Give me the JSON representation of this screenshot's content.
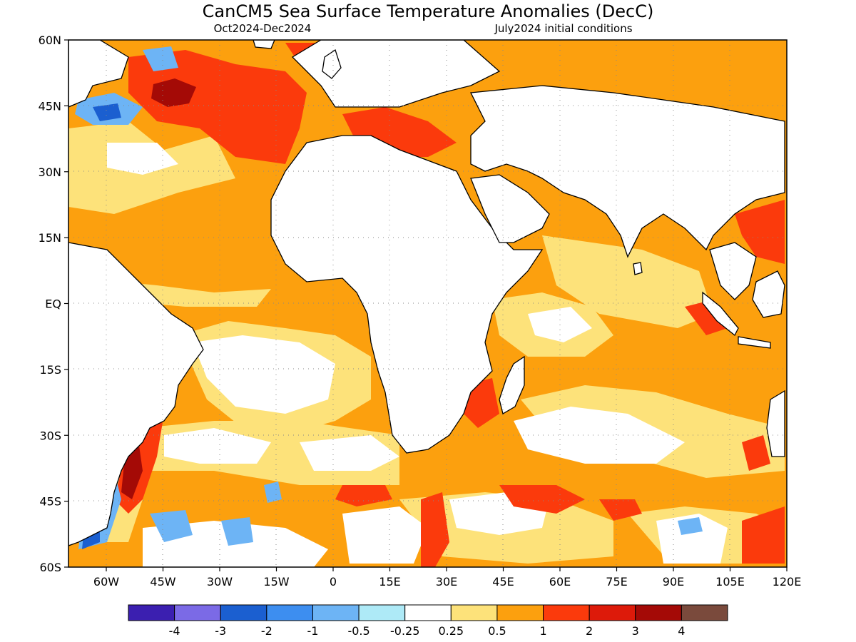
{
  "title": "CanCM5 Sea Surface Temperature Anomalies (DecC)",
  "subtitle_left": "Oct2024-Dec2024",
  "subtitle_right": "July2024 initial conditions",
  "map": {
    "lon_range": [
      -70,
      120
    ],
    "lat_range": [
      -60,
      60
    ],
    "lat_ticks": [
      {
        "value": 60,
        "label": "60N"
      },
      {
        "value": 45,
        "label": "45N"
      },
      {
        "value": 30,
        "label": "30N"
      },
      {
        "value": 15,
        "label": "15N"
      },
      {
        "value": 0,
        "label": "EQ"
      },
      {
        "value": -15,
        "label": "15S"
      },
      {
        "value": -30,
        "label": "30S"
      },
      {
        "value": -45,
        "label": "45S"
      },
      {
        "value": -60,
        "label": "60S"
      }
    ],
    "lon_ticks": [
      {
        "value": -60,
        "label": "60W"
      },
      {
        "value": -45,
        "label": "45W"
      },
      {
        "value": -30,
        "label": "30W"
      },
      {
        "value": -15,
        "label": "15W"
      },
      {
        "value": 0,
        "label": "0"
      },
      {
        "value": 15,
        "label": "15E"
      },
      {
        "value": 30,
        "label": "30E"
      },
      {
        "value": 45,
        "label": "45E"
      },
      {
        "value": 60,
        "label": "60E"
      },
      {
        "value": 75,
        "label": "75E"
      },
      {
        "value": 90,
        "label": "90E"
      },
      {
        "value": 105,
        "label": "105E"
      },
      {
        "value": 120,
        "label": "120E"
      }
    ],
    "gridlines": true
  },
  "legend": {
    "colors": [
      "#3b1fb0",
      "#7b6ae6",
      "#1b5fd0",
      "#3d8ef0",
      "#6db4f5",
      "#aeeaf7",
      "#ffffff",
      "#fde27a",
      "#fca00e",
      "#fb3a0c",
      "#dd1a0a",
      "#a40a06",
      "#7a4a3c"
    ],
    "labels": [
      "-4",
      "-3",
      "-2",
      "-1",
      "-0.5",
      "-0.25",
      "0.25",
      "0.5",
      "1",
      "2",
      "3",
      "4"
    ]
  }
}
